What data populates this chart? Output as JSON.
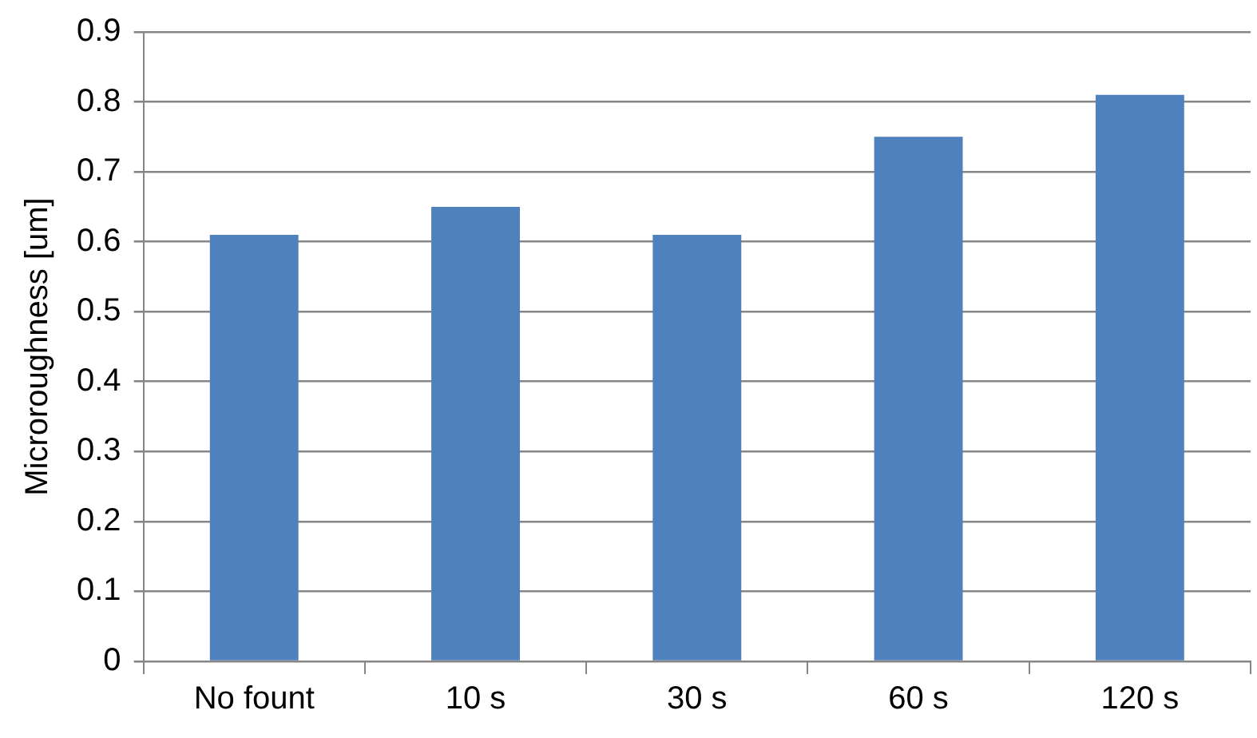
{
  "chart_data": {
    "type": "bar",
    "ylabel": "Microroughness [um]",
    "categories": [
      "No fount",
      "10 s",
      "30 s",
      "60 s",
      "120 s"
    ],
    "values": [
      0.61,
      0.65,
      0.61,
      0.75,
      0.81
    ],
    "color": "#4f81bd",
    "ylim": [
      0,
      0.9
    ],
    "yticks": [
      0,
      0.1,
      0.2,
      0.3,
      0.4,
      0.5,
      0.6,
      0.7,
      0.8,
      0.9
    ],
    "grid": "y",
    "legend": false
  }
}
